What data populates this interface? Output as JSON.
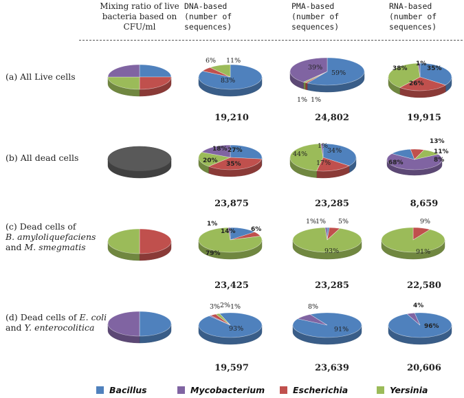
{
  "header": {
    "mix_label": "Mixing ratio of live bacteria based on CFU/ml",
    "dna_label": "DNA-based (number of sequences)",
    "pma_label": "PMA-based (number of sequences)",
    "rna_label": "RNA-based (number of sequences)"
  },
  "rows": {
    "a": {
      "label": "(a) All Live cells"
    },
    "b": {
      "label": "(b) All dead cells"
    },
    "c": {
      "label_1": "(c) Dead cells of",
      "label_2": "B. amyloliquefaciens",
      "label_3": "and",
      "label_4": "M. smegmatis"
    },
    "d": {
      "label_1": "(d) Dead cells of",
      "label_2": "E. coli",
      "label_3": "and",
      "label_4": "Y. enterocolitica"
    }
  },
  "counts": {
    "a": {
      "dna": "19,210",
      "pma": "24,802",
      "rna": "19,915"
    },
    "b": {
      "dna": "23,875",
      "pma": "23,285",
      "rna": "8,659"
    },
    "c": {
      "dna": "23,425",
      "pma": "23,285",
      "rna": "22,580"
    },
    "d": {
      "dna": "19,597",
      "pma": "23,639",
      "rna": "20,606"
    }
  },
  "legend": {
    "bacillus": "Bacillus",
    "mycobacterium": "Mycobacterium",
    "escherichia": "Escherichia",
    "yersinia": "Yersinia"
  },
  "colors": {
    "bacillus": "#4f81bd",
    "mycobacterium": "#8064a2",
    "escherichia": "#c0504d",
    "yersinia": "#9bbb59",
    "dead": "#595959"
  },
  "chart_data": [
    {
      "type": "pie",
      "title": "(a) All Live cells - Mixing ratio",
      "labels": [
        "Bacillus",
        "Escherichia",
        "Yersinia",
        "Mycobacterium"
      ],
      "values": [
        25,
        25,
        25,
        25
      ]
    },
    {
      "type": "pie",
      "title": "(a) All Live cells - DNA-based",
      "labels": [
        "Bacillus",
        "Escherichia",
        "Mycobacterium",
        "Yersinia"
      ],
      "values": [
        83,
        6,
        0,
        11
      ],
      "data_labels": [
        "83%",
        "6%",
        "",
        "11%"
      ]
    },
    {
      "type": "pie",
      "title": "(a) All Live cells - PMA-based",
      "labels": [
        "Bacillus",
        "Escherichia",
        "Yersinia",
        "Mycobacterium"
      ],
      "values": [
        59,
        1,
        1,
        39
      ],
      "data_labels": [
        "59%",
        "1%",
        "1%",
        "39%"
      ]
    },
    {
      "type": "pie",
      "title": "(a) All Live cells - RNA-based",
      "labels": [
        "Bacillus",
        "Escherichia",
        "Yersinia",
        "Mycobacterium"
      ],
      "values": [
        35,
        26,
        38,
        1
      ],
      "data_labels": [
        "35%",
        "26%",
        "38%",
        "1%"
      ]
    },
    {
      "type": "pie",
      "title": "(b) All dead cells - Mixing ratio",
      "labels": [
        "Dead"
      ],
      "values": [
        100
      ]
    },
    {
      "type": "pie",
      "title": "(b) All dead cells - DNA-based",
      "labels": [
        "Bacillus",
        "Escherichia",
        "Yersinia",
        "Mycobacterium"
      ],
      "values": [
        27,
        35,
        20,
        18
      ],
      "data_labels": [
        "27%",
        "35%",
        "20%",
        "18%"
      ]
    },
    {
      "type": "pie",
      "title": "(b) All dead cells - PMA-based",
      "labels": [
        "Bacillus",
        "Escherichia",
        "Yersinia",
        "Mycobacterium"
      ],
      "values": [
        34,
        17,
        44,
        1
      ],
      "data_labels": [
        "34%",
        "17%",
        "44%",
        "1%"
      ]
    },
    {
      "type": "pie",
      "title": "(b) All dead cells - RNA-based",
      "labels": [
        "Mycobacterium",
        "Bacillus",
        "Escherichia",
        "Yersinia"
      ],
      "values": [
        68,
        13,
        8,
        11
      ],
      "data_labels": [
        "68%",
        "13%",
        "8%",
        "11%"
      ]
    },
    {
      "type": "pie",
      "title": "(c) Dead B. amyloliquefaciens and M. smegmatis - Mixing ratio",
      "labels": [
        "Escherichia",
        "Yersinia"
      ],
      "values": [
        50,
        50
      ]
    },
    {
      "type": "pie",
      "title": "(c) Dead B. amyloliquefaciens and M. smegmatis - DNA-based",
      "labels": [
        "Bacillus",
        "Escherichia",
        "Yersinia",
        "Mycobacterium"
      ],
      "values": [
        14,
        6,
        79,
        1
      ],
      "data_labels": [
        "14%",
        "6%",
        "79%",
        "1%"
      ]
    },
    {
      "type": "pie",
      "title": "(c) Dead B. amyloliquefaciens and M. smegmatis - PMA-based",
      "labels": [
        "Bacillus",
        "Escherichia",
        "Yersinia",
        "Mycobacterium"
      ],
      "values": [
        1,
        5,
        93,
        1
      ],
      "data_labels": [
        "1%",
        "5%",
        "93%",
        "1%"
      ]
    },
    {
      "type": "pie",
      "title": "(c) Dead B. amyloliquefaciens and M. smegmatis - RNA-based",
      "labels": [
        "Escherichia",
        "Yersinia"
      ],
      "values": [
        9,
        91
      ],
      "data_labels": [
        "9%",
        "91%"
      ]
    },
    {
      "type": "pie",
      "title": "(d) Dead E. coli and Y. enterocolitica - Mixing ratio",
      "labels": [
        "Bacillus",
        "Mycobacterium"
      ],
      "values": [
        50,
        50
      ]
    },
    {
      "type": "pie",
      "title": "(d) Dead E. coli and Y. enterocolitica - DNA-based",
      "labels": [
        "Bacillus",
        "Mycobacterium",
        "Escherichia",
        "Yersinia"
      ],
      "values": [
        93,
        1,
        3,
        2
      ],
      "data_labels": [
        "93%",
        "1%",
        "3%",
        "2%"
      ]
    },
    {
      "type": "pie",
      "title": "(d) Dead E. coli and Y. enterocolitica - PMA-based",
      "labels": [
        "Bacillus",
        "Mycobacterium"
      ],
      "values": [
        91,
        8
      ],
      "data_labels": [
        "91%",
        "8%"
      ]
    },
    {
      "type": "pie",
      "title": "(d) Dead E. coli and Y. enterocolitica - RNA-based",
      "labels": [
        "Bacillus",
        "Mycobacterium"
      ],
      "values": [
        96,
        4
      ],
      "data_labels": [
        "96%",
        "4%"
      ]
    }
  ]
}
